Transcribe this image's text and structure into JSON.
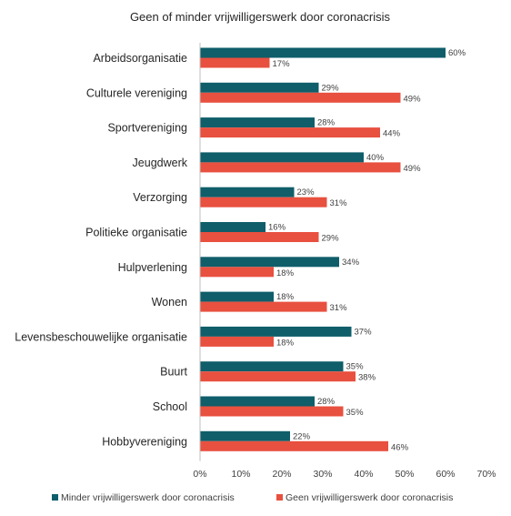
{
  "chart_data": {
    "type": "bar",
    "orientation": "horizontal",
    "title": "Geen of minder vrijwilligerswerk door coronacrisis",
    "categories": [
      "Arbeidsorganisatie",
      "Culturele vereniging",
      "Sportvereniging",
      "Jeugdwerk",
      "Verzorging",
      "Politieke organisatie",
      "Hulpverlening",
      "Wonen",
      "Levensbeschouwelijke organisatie",
      "Buurt",
      "School",
      "Hobbyvereniging"
    ],
    "series": [
      {
        "name": "Minder vrijwilligerswerk door coronacrisis",
        "color": "#0f5e6a",
        "values": [
          60,
          29,
          28,
          40,
          23,
          16,
          34,
          18,
          37,
          35,
          28,
          22
        ],
        "labels": [
          "60%",
          "29%",
          "28%",
          "40%",
          "23%",
          "16%",
          "34%",
          "18%",
          "37%",
          "35%",
          "28%",
          "22%"
        ]
      },
      {
        "name": "Geen vrijwilligerswerk door coronacrisis",
        "color": "#e8503f",
        "values": [
          17,
          49,
          44,
          49,
          31,
          29,
          18,
          31,
          18,
          38,
          35,
          46
        ],
        "labels": [
          "17%",
          "49%",
          "44%",
          "49%",
          "31%",
          "29%",
          "18%",
          "31%",
          "18%",
          "38%",
          "35%",
          "46%"
        ]
      }
    ],
    "xlim": [
      0,
      70
    ],
    "xticks": [
      0,
      10,
      20,
      30,
      40,
      50,
      60,
      70
    ],
    "xtick_labels": [
      "0%",
      "10%",
      "20%",
      "30%",
      "40%",
      "50%",
      "60%",
      "70%"
    ],
    "grid": false,
    "legend": "bottom"
  }
}
